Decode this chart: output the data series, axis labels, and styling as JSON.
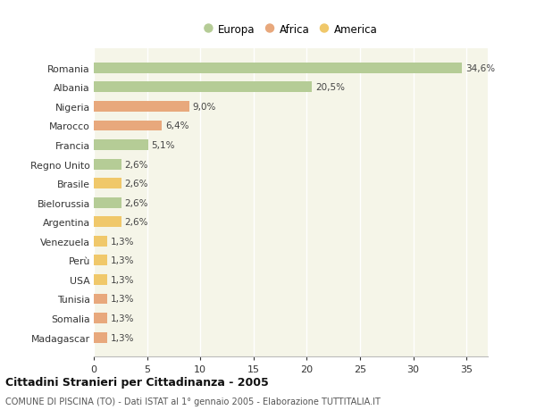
{
  "countries": [
    "Romania",
    "Albania",
    "Nigeria",
    "Marocco",
    "Francia",
    "Regno Unito",
    "Brasile",
    "Bielorussia",
    "Argentina",
    "Venezuela",
    "Perù",
    "USA",
    "Tunisia",
    "Somalia",
    "Madagascar"
  ],
  "values": [
    34.6,
    20.5,
    9.0,
    6.4,
    5.1,
    2.6,
    2.6,
    2.6,
    2.6,
    1.3,
    1.3,
    1.3,
    1.3,
    1.3,
    1.3
  ],
  "continents": [
    "Europa",
    "Europa",
    "Africa",
    "Africa",
    "Europa",
    "Europa",
    "America",
    "Europa",
    "America",
    "America",
    "America",
    "America",
    "Africa",
    "Africa",
    "Africa"
  ],
  "colors": {
    "Europa": "#b5cc96",
    "Africa": "#e8a87c",
    "America": "#f0c86a"
  },
  "title": "Cittadini Stranieri per Cittadinanza - 2005",
  "subtitle": "COMUNE DI PISCINA (TO) - Dati ISTAT al 1° gennaio 2005 - Elaborazione TUTTITALIA.IT",
  "xlim": [
    0,
    37
  ],
  "xticks": [
    0,
    5,
    10,
    15,
    20,
    25,
    30,
    35
  ],
  "background_color": "#ffffff",
  "plot_bg_color": "#f5f5e8",
  "grid_color": "#ffffff"
}
